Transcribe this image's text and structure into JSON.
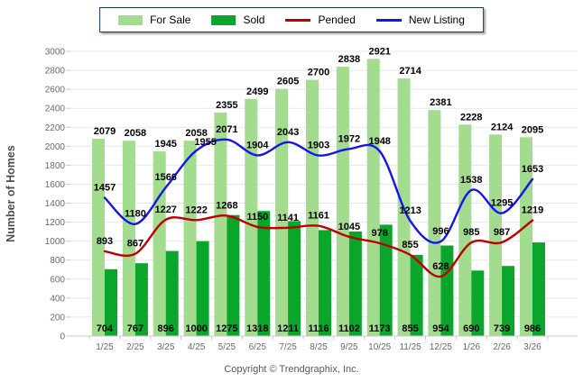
{
  "chart": {
    "y_axis_title": "Number of Homes",
    "footer": "Copyright © Trendgraphix, Inc.",
    "legend": [
      {
        "label": "For Sale",
        "type": "bar",
        "color": "#A3DB8F"
      },
      {
        "label": "Sold",
        "type": "bar",
        "color": "#0AA62B"
      },
      {
        "label": "Pended",
        "type": "line",
        "color": "#C00000"
      },
      {
        "label": "New Listing",
        "type": "line",
        "color": "#1414F0"
      }
    ],
    "colors": {
      "grid": "#E8E8E8",
      "axis": "#C9C9C9",
      "tick_text": "#6A6A6A",
      "data_label": "#000000",
      "axis_title": "#4D4D4D"
    }
  },
  "chart_data": {
    "type": "bar",
    "title": "",
    "xlabel": "",
    "ylabel": "Number of Homes",
    "ylim": [
      0,
      3000
    ],
    "ytick_step": 200,
    "grid": true,
    "legend_position": "top",
    "categories": [
      "1/25",
      "2/25",
      "3/25",
      "4/25",
      "5/25",
      "6/25",
      "7/25",
      "8/25",
      "9/25",
      "10/25",
      "11/25",
      "12/25",
      "1/26",
      "2/26",
      "3/26"
    ],
    "series": [
      {
        "name": "For Sale",
        "series_type": "bar",
        "color": "#A3DB8F",
        "values": [
          2079,
          2058,
          1945,
          2058,
          2355,
          2499,
          2605,
          2700,
          2838,
          2921,
          2714,
          2381,
          2228,
          2124,
          2095
        ]
      },
      {
        "name": "Sold",
        "series_type": "bar",
        "color": "#0AA62B",
        "values": [
          704,
          767,
          896,
          1000,
          1275,
          1318,
          1211,
          1116,
          1102,
          1173,
          855,
          954,
          690,
          739,
          986
        ]
      },
      {
        "name": "Pended",
        "series_type": "line",
        "color": "#C00000",
        "values": [
          893,
          867,
          1227,
          1222,
          1268,
          1150,
          1141,
          1161,
          1045,
          978,
          855,
          628,
          985,
          987,
          1219
        ]
      },
      {
        "name": "New Listing",
        "series_type": "line",
        "color": "#1414F0",
        "values": [
          1457,
          1180,
          1566,
          1955,
          2071,
          1904,
          2043,
          1903,
          1972,
          1948,
          1213,
          996,
          1538,
          1295,
          1653
        ]
      }
    ]
  }
}
